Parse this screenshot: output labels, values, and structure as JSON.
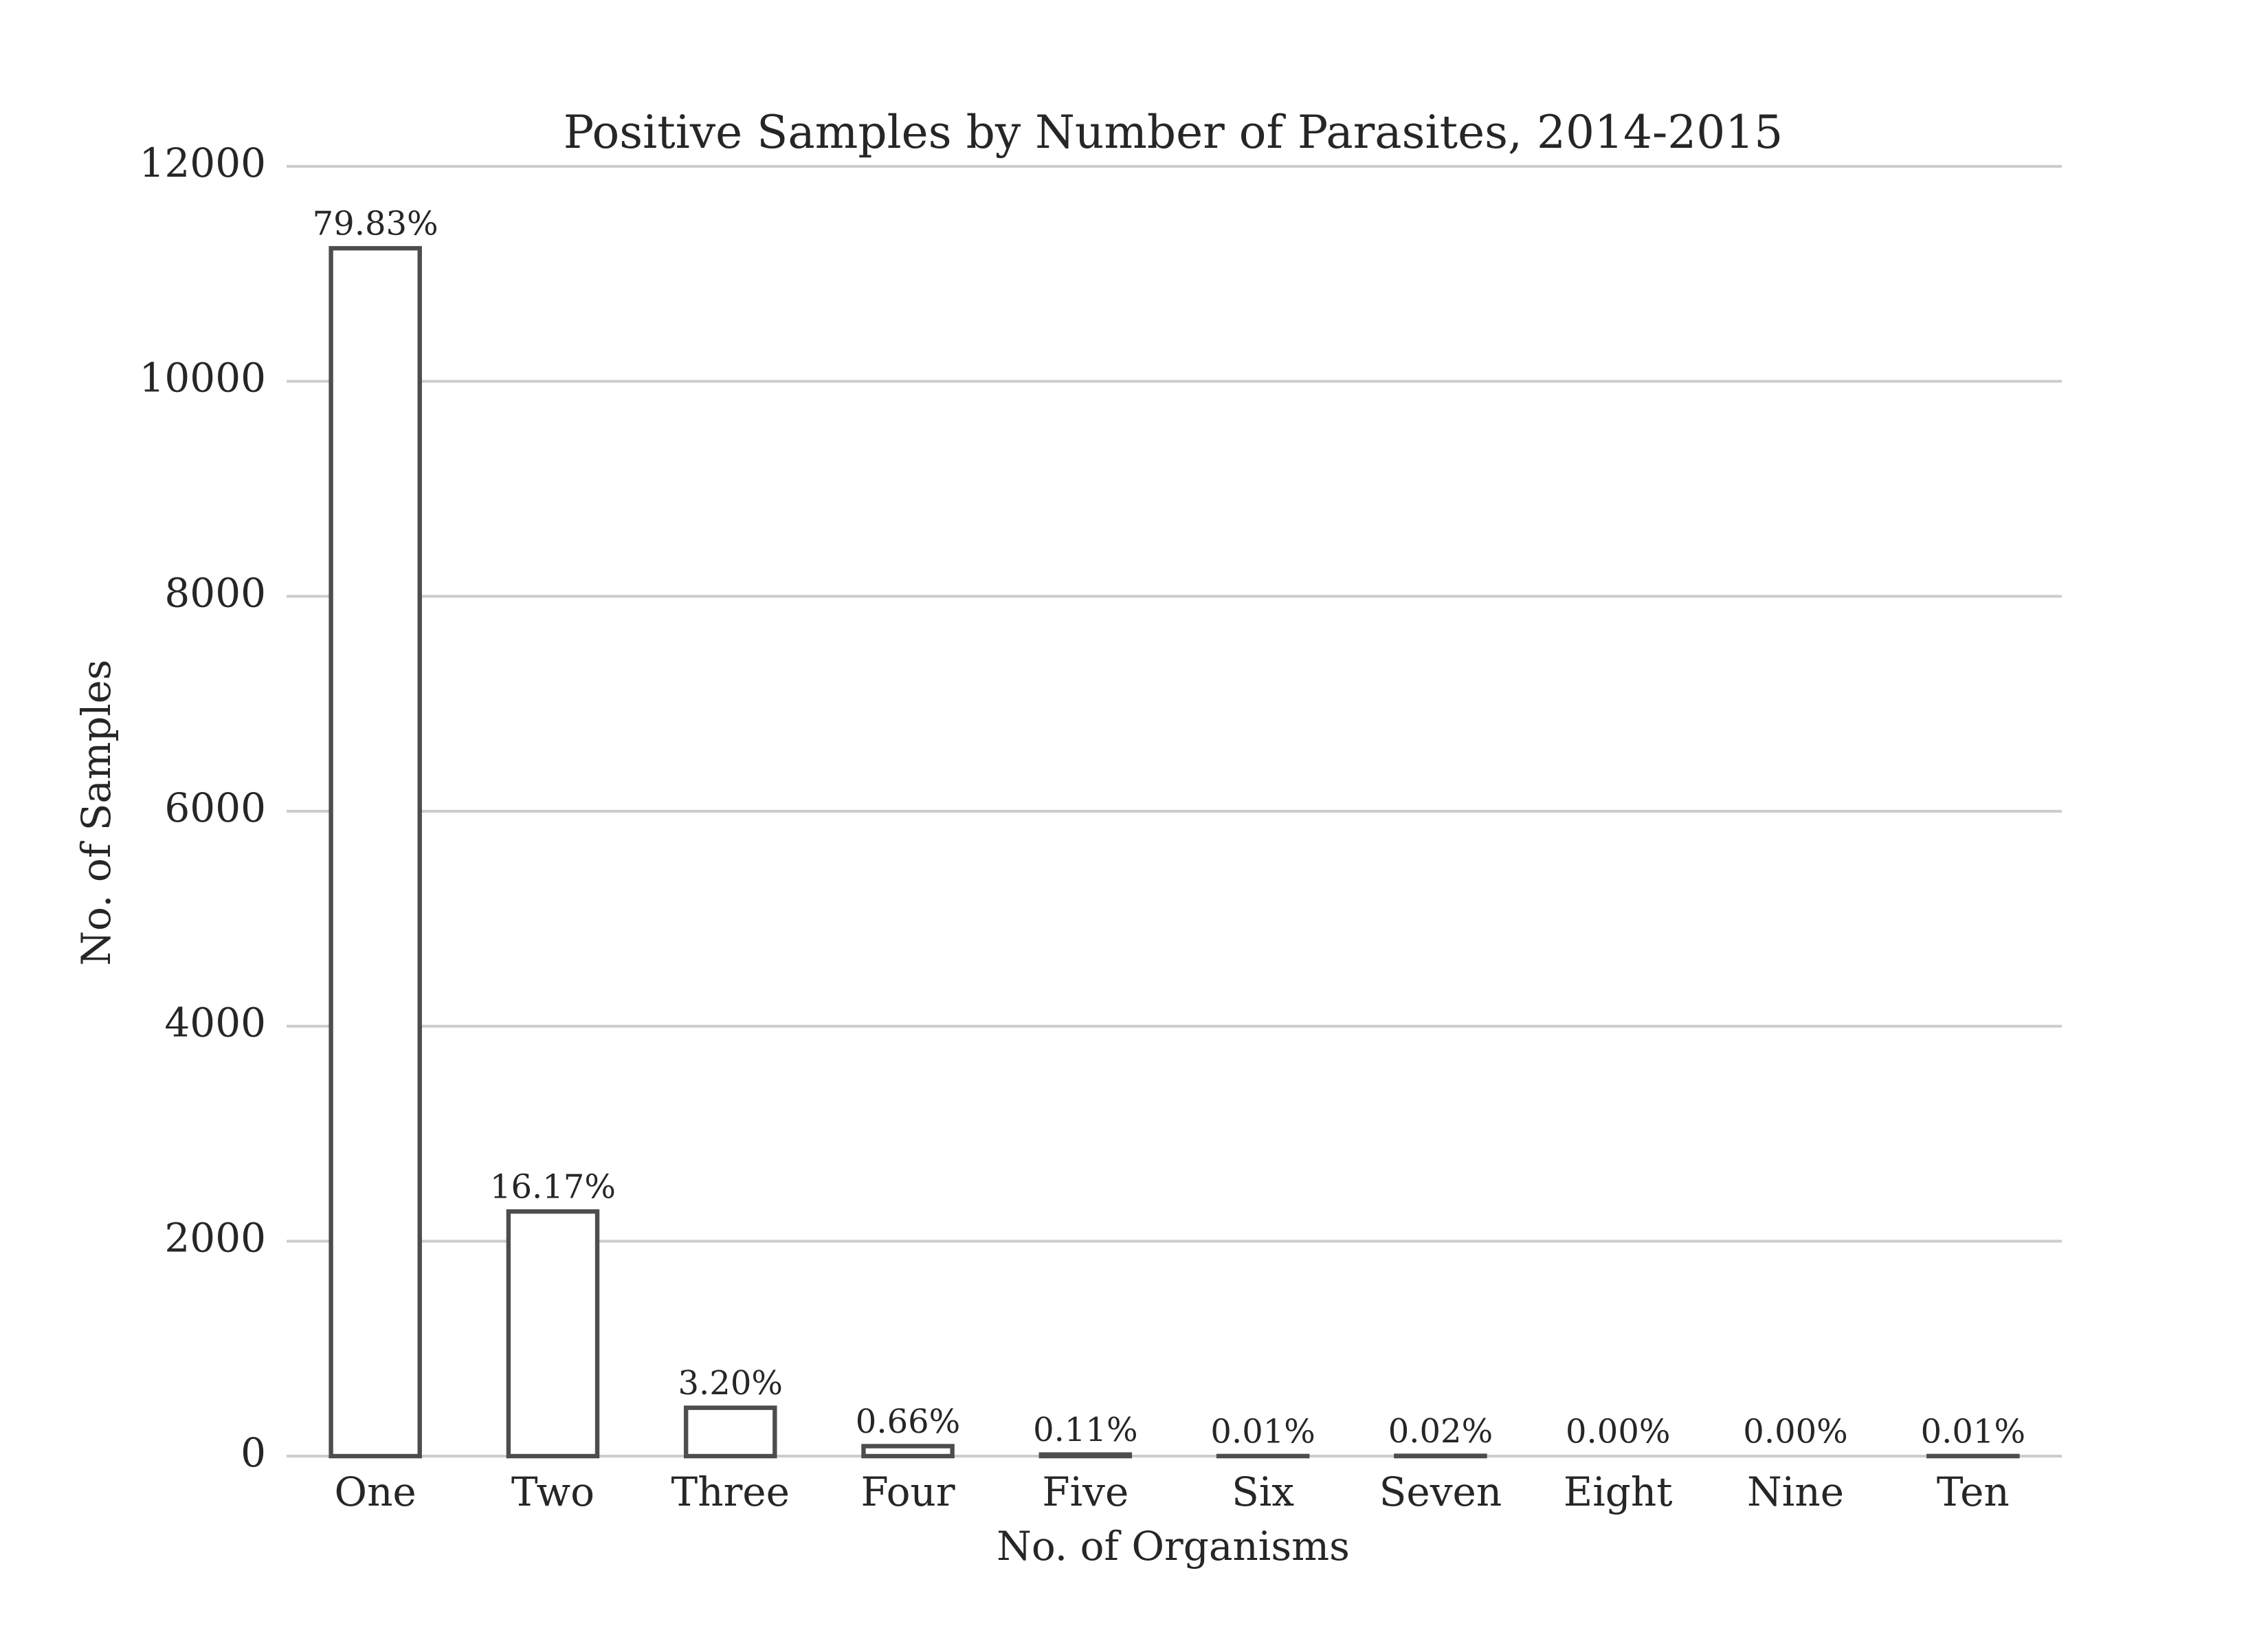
{
  "chart_data": {
    "type": "bar",
    "title": "Positive Samples by Number of Parasites, 2014-2015",
    "x_label": "No. of Organisms",
    "y_label": "No. of Samples",
    "categories": [
      "One",
      "Two",
      "Three",
      "Four",
      "Five",
      "Six",
      "Seven",
      "Eight",
      "Nine",
      "Ten"
    ],
    "values": [
      11238,
      2276,
      450,
      93,
      15,
      1,
      3,
      0,
      0,
      1
    ],
    "annotations": [
      "79.83%",
      "16.17%",
      "3.20%",
      "0.66%",
      "0.11%",
      "0.01%",
      "0.02%",
      "0.00%",
      "0.00%",
      "0.01%"
    ],
    "color": "#ffffff",
    "edgecolor": "#4d4d4d",
    "ylim": [
      0,
      12000
    ],
    "yticks": [
      0,
      2000,
      4000,
      6000,
      8000,
      10000,
      12000
    ],
    "grid": true
  }
}
